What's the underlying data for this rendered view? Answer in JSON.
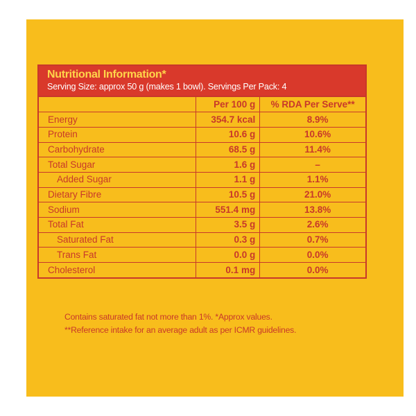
{
  "panel": {
    "background": "#f8bd1c",
    "accent": "#d9392b",
    "title_color": "#ffd64a"
  },
  "header": {
    "title": "Nutritional Information*",
    "serving": "Serving Size: approx 50 g (makes 1 bowl). Servings Per Pack: 4"
  },
  "columns": {
    "nutrient": "",
    "per_100g": "Per 100 g",
    "rda": "% RDA Per Serve**"
  },
  "rows": [
    {
      "name": "Energy",
      "per_100g": "354.7 kcal",
      "rda": "8.9%",
      "sub": false
    },
    {
      "name": "Protein",
      "per_100g": "10.6 g",
      "rda": "10.6%",
      "sub": false
    },
    {
      "name": "Carbohydrate",
      "per_100g": "68.5 g",
      "rda": "11.4%",
      "sub": false
    },
    {
      "name": "Total Sugar",
      "per_100g": "1.6 g",
      "rda": "–",
      "sub": false
    },
    {
      "name": "Added Sugar",
      "per_100g": "1.1 g",
      "rda": "1.1%",
      "sub": true
    },
    {
      "name": "Dietary Fibre",
      "per_100g": "10.5 g",
      "rda": "21.0%",
      "sub": false
    },
    {
      "name": "Sodium",
      "per_100g": "551.4 mg",
      "rda": "13.8%",
      "sub": false
    },
    {
      "name": "Total Fat",
      "per_100g": "3.5 g",
      "rda": "2.6%",
      "sub": false
    },
    {
      "name": "Saturated Fat",
      "per_100g": "0.3 g",
      "rda": "0.7%",
      "sub": true
    },
    {
      "name": "Trans Fat",
      "per_100g": "0.0 g",
      "rda": "0.0%",
      "sub": true
    },
    {
      "name": "Cholesterol",
      "per_100g": "0.1 mg",
      "rda": "0.0%",
      "sub": false
    }
  ],
  "footnotes": {
    "line1": "Contains saturated fat not more than 1%. *Approx values.",
    "line2": "**Reference intake for an average adult as per ICMR guidelines."
  }
}
